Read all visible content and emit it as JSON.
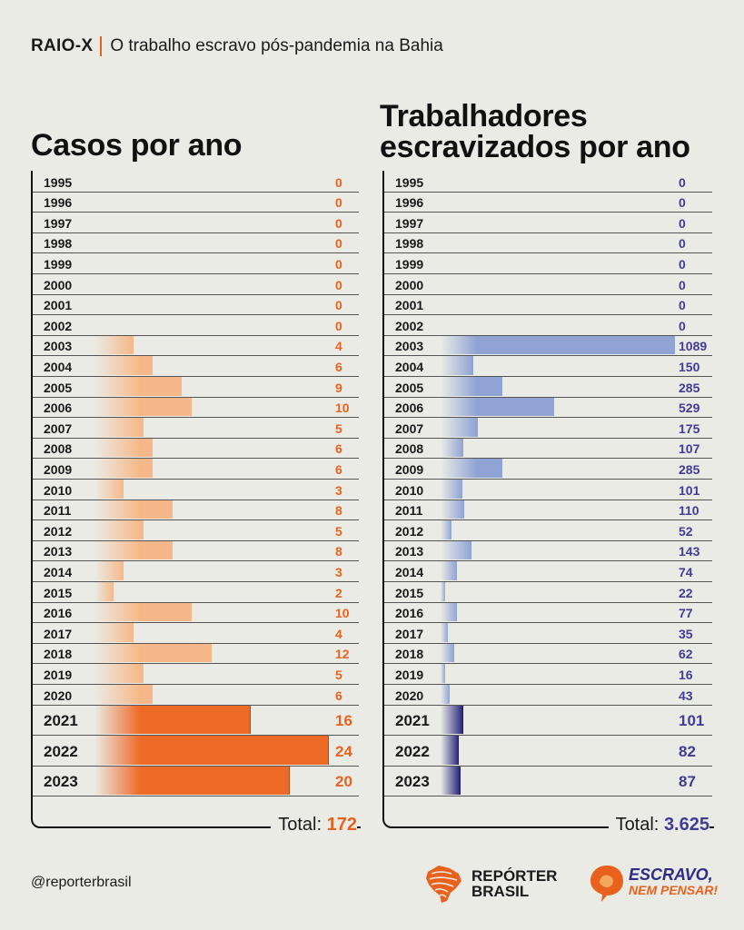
{
  "header": {
    "tag": "RAIO-X",
    "subtitle": "O trabalho escravo pós-pandemia na Bahia"
  },
  "colors": {
    "orange": "#e8621e",
    "orange_light": "#f6b888",
    "orange_dark": "#ee6a27",
    "blue": "#413b96",
    "blue_light": "#8fa3d4",
    "blue_dark": "#2c2a7d"
  },
  "chart_data": [
    {
      "type": "bar",
      "title": "Casos por ano",
      "categories": [
        "1995",
        "1996",
        "1997",
        "1998",
        "1999",
        "2000",
        "2001",
        "2002",
        "2003",
        "2004",
        "2005",
        "2006",
        "2007",
        "2008",
        "2009",
        "2010",
        "2011",
        "2012",
        "2013",
        "2014",
        "2015",
        "2016",
        "2017",
        "2018",
        "2019",
        "2020",
        "2021",
        "2022",
        "2023"
      ],
      "values": [
        0,
        0,
        0,
        0,
        0,
        0,
        0,
        0,
        4,
        6,
        9,
        10,
        5,
        6,
        6,
        3,
        8,
        5,
        8,
        3,
        2,
        10,
        4,
        12,
        5,
        6,
        16,
        24,
        20
      ],
      "highlighted": [
        "2021",
        "2022",
        "2023"
      ],
      "total_label": "Total:",
      "total_value": "172"
    },
    {
      "type": "bar",
      "title_lines": [
        "Trabalhadores",
        "escravizados por ano"
      ],
      "categories": [
        "1995",
        "1996",
        "1997",
        "1998",
        "1999",
        "2000",
        "2001",
        "2002",
        "2003",
        "2004",
        "2005",
        "2006",
        "2007",
        "2008",
        "2009",
        "2010",
        "2011",
        "2012",
        "2013",
        "2014",
        "2015",
        "2016",
        "2017",
        "2018",
        "2019",
        "2020",
        "2021",
        "2022",
        "2023"
      ],
      "values": [
        0,
        0,
        0,
        0,
        0,
        0,
        0,
        0,
        1089,
        150,
        285,
        529,
        175,
        107,
        285,
        101,
        110,
        52,
        143,
        74,
        22,
        77,
        35,
        62,
        16,
        43,
        101,
        82,
        87
      ],
      "highlighted": [
        "2021",
        "2022",
        "2023"
      ],
      "total_label": "Total:",
      "total_value": "3.625"
    }
  ],
  "footer": {
    "handle": "@reporterbrasil",
    "logo1_line1": "REPÓRTER",
    "logo1_line2": "BRASIL",
    "logo2_line1": "ESCRAVO,",
    "logo2_line2": "NEM PENSAR!"
  }
}
